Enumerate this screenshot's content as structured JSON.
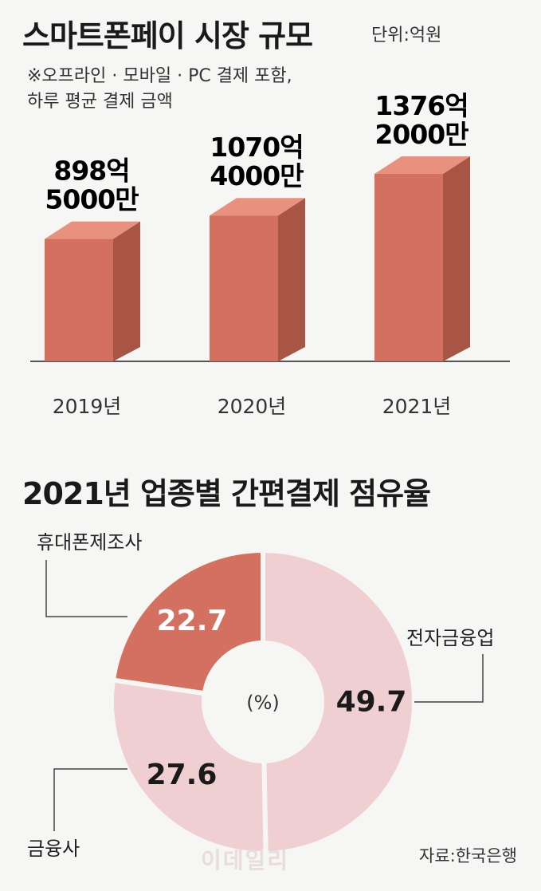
{
  "header": {
    "title": "스마트폰페이 시장 규모",
    "unit": "단위:억원",
    "note_line1": "※오프라인 · 모바일 · PC 결제 포함,",
    "note_line2": "하루 평균 결제 금액"
  },
  "section2": {
    "title": "2021년 업종별 간편결제 점유율"
  },
  "footer": {
    "source": "자료:한국은행",
    "watermark": "이데일리"
  },
  "colors": {
    "bar_front": "#d4705f",
    "bar_side": "#a85546",
    "bar_top": "#e8917f",
    "pie_dark": "#d4705f",
    "pie_light": "#efcfd2",
    "baseline": "#555555"
  },
  "chart_data": [
    {
      "type": "bar",
      "title": "스마트폰페이 시장 규모",
      "categories": [
        "2019년",
        "2020년",
        "2021년"
      ],
      "values": [
        898.5,
        1070.4,
        1376.2
      ],
      "data_labels": [
        [
          "898억",
          "5000만"
        ],
        [
          "1070억",
          "4000만"
        ],
        [
          "1376억",
          "2000만"
        ]
      ],
      "unit": "단위:억원",
      "ylim": [
        0,
        1500
      ]
    },
    {
      "type": "pie",
      "title": "2021년 업종별 간편결제 점유율",
      "center_label": "(%)",
      "slices": [
        {
          "name": "휴대폰제조사",
          "value": 22.7,
          "label": "22.7"
        },
        {
          "name": "전자금융업",
          "value": 49.7,
          "label": "49.7"
        },
        {
          "name": "금융사",
          "value": 27.6,
          "label": "27.6"
        }
      ]
    }
  ]
}
